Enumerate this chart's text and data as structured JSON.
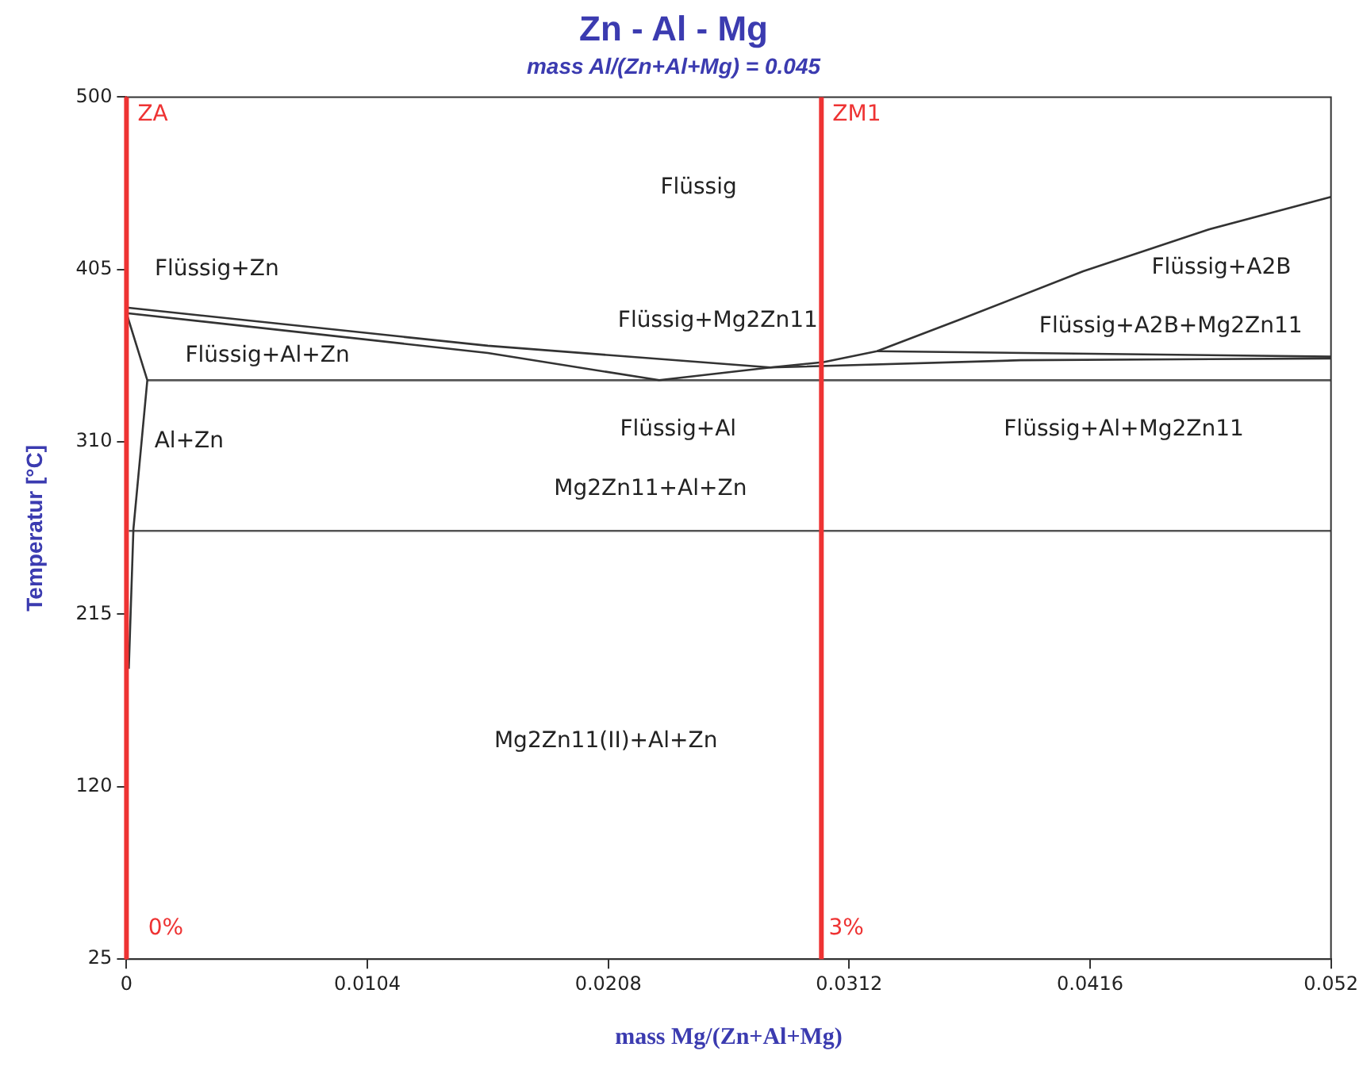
{
  "chart_data": {
    "type": "line",
    "title": "Zn - Al - Mg",
    "subtitle": "mass Al/(Zn+Al+Mg) = 0.045",
    "xlabel": "mass Mg/(Zn+Al+Mg)",
    "ylabel": "Temperatur [°C]",
    "xlim": [
      0,
      0.052
    ],
    "xticks": [
      0,
      0.0104,
      0.0208,
      0.0312,
      0.0416,
      0.052
    ],
    "ylim": [
      25,
      500
    ],
    "yticks": [
      25,
      120,
      215,
      310,
      405,
      500
    ],
    "grid": false,
    "legend": false,
    "marker": "none",
    "line_style": "solid",
    "series": [
      {
        "color": "#333333",
        "x": [
          0,
          0.0156,
          0.0278,
          0.0301,
          0.0324,
          0.0359,
          0.0413,
          0.0467,
          0.052
        ],
        "values": [
          384,
          363,
          351,
          354,
          360,
          377,
          404,
          427,
          445
        ]
      },
      {
        "color": "#333333",
        "x": [
          0.0001,
          0.0003,
          0.0009,
          0,
          0.0156,
          0.023,
          0.0278,
          0.0386,
          0.052
        ],
        "values": [
          185,
          262,
          344,
          381,
          359,
          344,
          351,
          355,
          356
        ]
      },
      {
        "color": "#333333",
        "x": [
          0.0324,
          0.052
        ],
        "values": [
          360,
          357
        ]
      },
      {
        "color": "#555555",
        "x": [
          0.0009,
          0.052
        ],
        "values": [
          344,
          344
        ]
      },
      {
        "color": "#555555",
        "x": [
          0.0001,
          0.052
        ],
        "values": [
          261,
          261
        ]
      }
    ],
    "ref_lines": [
      {
        "axis": "x",
        "value": 0,
        "label": "ZA",
        "color": "#ee3333"
      },
      {
        "axis": "x",
        "value": 0.03,
        "label": "ZM1",
        "color": "#ee3333"
      }
    ],
    "annotations": [
      "Flüssig",
      "Flüssig+Zn",
      "Flüssig+Al+Zn",
      "Al+Zn",
      "Flüssig+Mg2Zn11",
      "Flüssig+Al",
      "Mg2Zn11+Al+Zn",
      "Mg2Zn11(II)+Al+Zn",
      "Flüssig+A2B",
      "Flüssig+A2B+Mg2Zn11",
      "Flüssig+Al+Mg2Zn11",
      "0%",
      "3%"
    ]
  }
}
